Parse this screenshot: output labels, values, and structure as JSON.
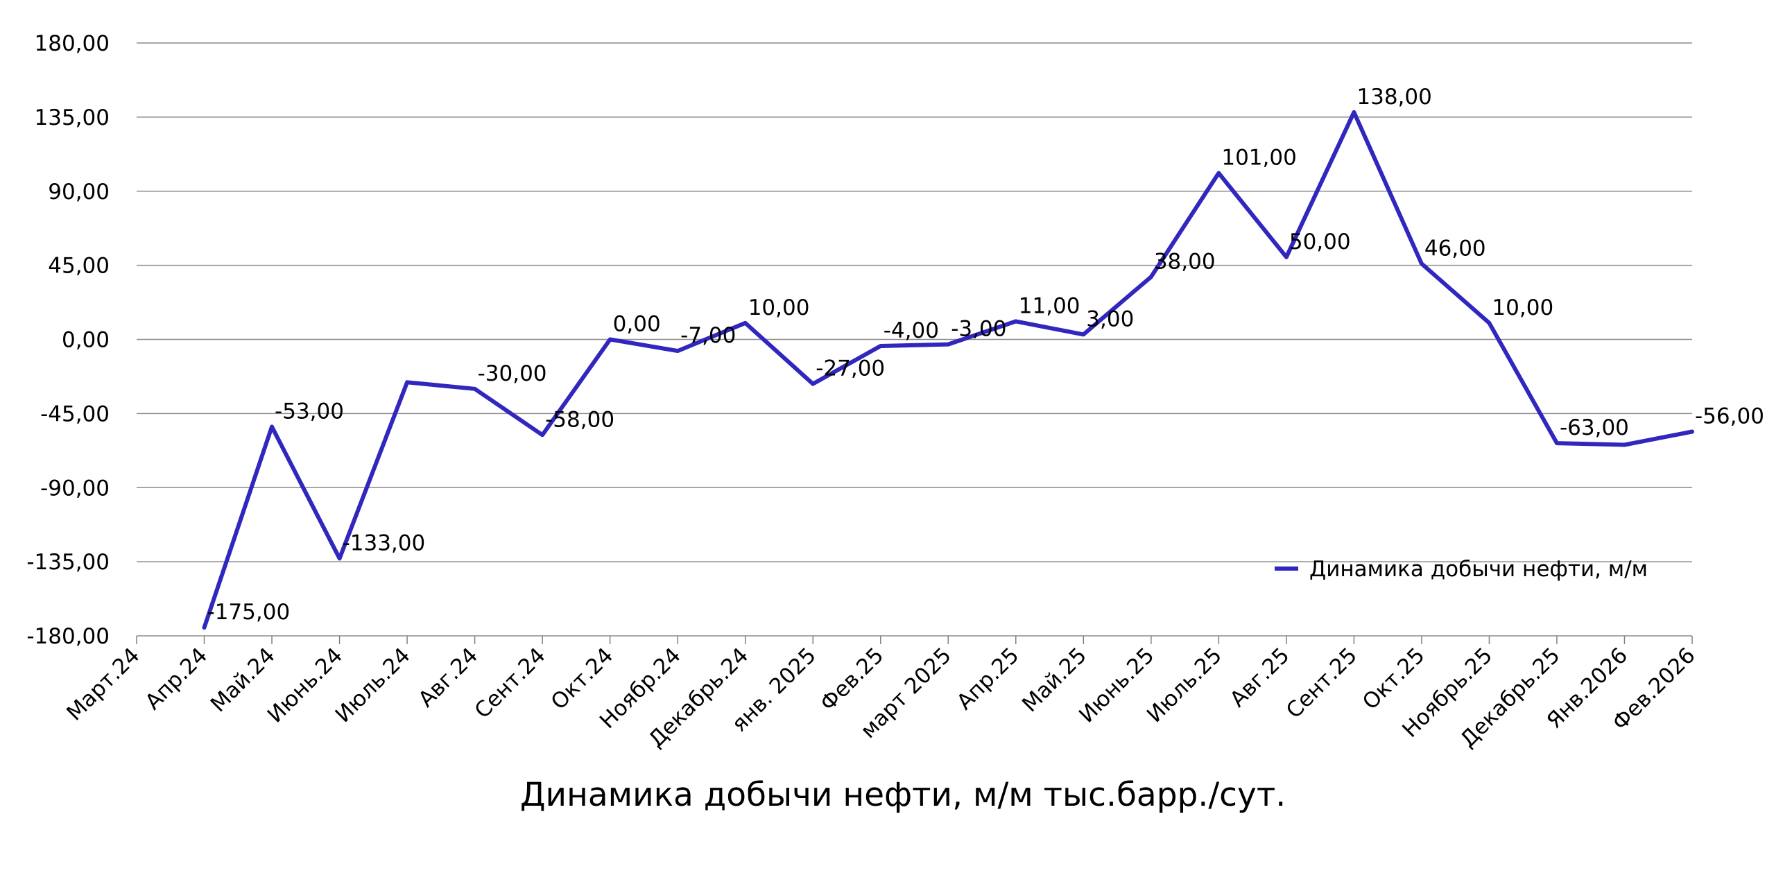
{
  "chart_data": {
    "type": "line",
    "title": "Динамика добычи нефти, м/м тыс.барр./сут.",
    "categories": [
      "Март.24",
      "Апр.24",
      "Май.24",
      "Июнь.24",
      "Июль.24",
      "Авг.24",
      "Сент.24",
      "Окт.24",
      "Ноябр.24",
      "Декабрь.24",
      "янв. 2025",
      "Фев.25",
      "март 2025",
      "Апр.25",
      "Май.25",
      "Июнь.25",
      "Июль.25",
      "Авг.25",
      "Сент.25",
      "Окт.25",
      "Ноябрь.25",
      "Декабрь.25",
      "Янв.2026",
      "Фев.2026"
    ],
    "series": [
      {
        "name": "Динамика добычи нефти, м/м",
        "color": "#3127bf",
        "values": [
          null,
          -175,
          -53,
          -133,
          -26,
          -30,
          -58,
          0,
          -7,
          10,
          -27,
          -4,
          -3,
          11,
          3,
          38,
          101,
          50,
          138,
          46,
          10,
          -63,
          -64,
          -56
        ],
        "data_labels": [
          null,
          "-175,00",
          "-53,00",
          "-133,00",
          null,
          "-30,00",
          "-58,00",
          "0,00",
          "-7,00",
          "10,00",
          "-27,00",
          "-4,00",
          "-3,00",
          "11,00",
          "3,00",
          "38,00",
          "101,00",
          "50,00",
          "138,00",
          "46,00",
          "10,00",
          "-63,00",
          null,
          "-56,00"
        ]
      }
    ],
    "ylim": [
      -180,
      180
    ],
    "yticks": [
      180,
      135,
      90,
      45,
      0,
      -45,
      -90,
      -135,
      -180
    ],
    "ytick_labels": [
      "180,00",
      "135,00",
      "90,00",
      "45,00",
      "0,00",
      "-45,00",
      "-90,00",
      "-135,00",
      "-180,00"
    ],
    "xlabel": "",
    "ylabel": "",
    "grid": true,
    "legend_position": "bottom-right",
    "gridline_color": "#8c8c8c",
    "axis_color": "#808080"
  }
}
